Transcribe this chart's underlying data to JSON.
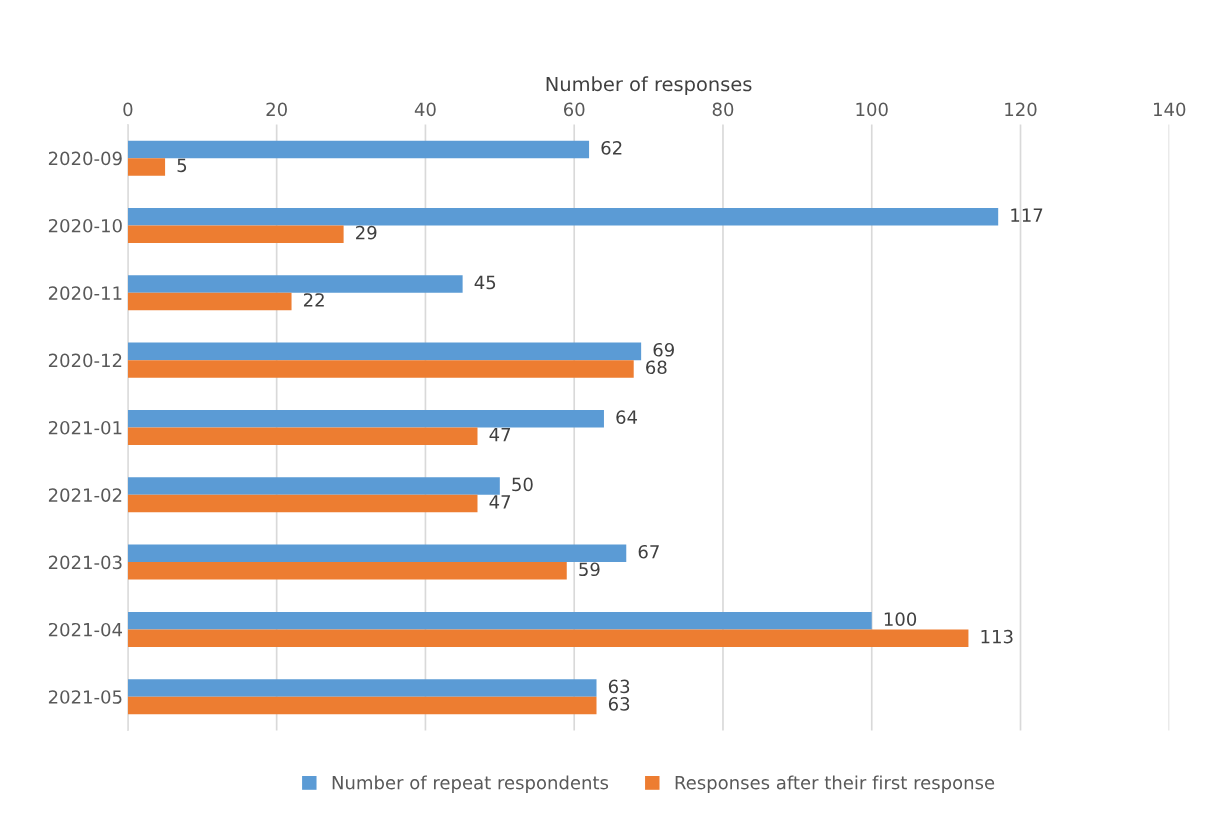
{
  "chart_data": {
    "type": "bar",
    "orientation": "horizontal",
    "xlabel": "Number of responses",
    "categories": [
      "2020-09",
      "2020-10",
      "2020-11",
      "2020-12",
      "2021-01",
      "2021-02",
      "2021-03",
      "2021-04",
      "2021-05"
    ],
    "series": [
      {
        "name": "Number of repeat respondents",
        "color": "#5b9bd5",
        "values": [
          62,
          117,
          45,
          69,
          64,
          50,
          67,
          100,
          63
        ]
      },
      {
        "name": "Responses after their first response",
        "color": "#ed7d31",
        "values": [
          5,
          29,
          22,
          68,
          47,
          47,
          59,
          113,
          63
        ]
      }
    ],
    "xlim": [
      0,
      140
    ],
    "xticks": [
      0,
      20,
      40,
      60,
      80,
      100,
      120,
      140
    ],
    "grid": "x",
    "legend": "bottom",
    "data_labels": true
  }
}
